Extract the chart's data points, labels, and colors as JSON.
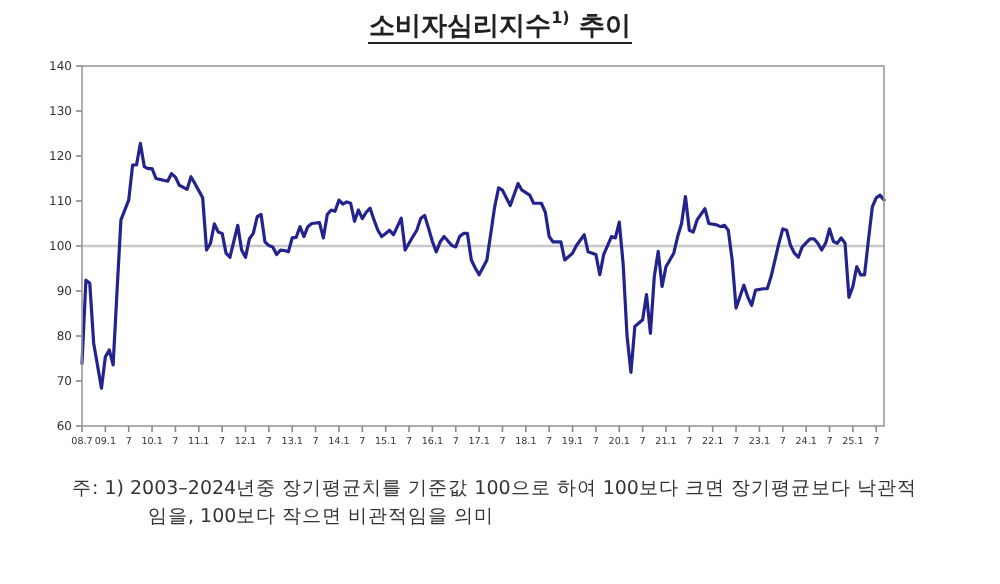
{
  "chart_data": {
    "type": "line",
    "title": "소비자심리지수$^{1)}$ 추이",
    "x": [
      "2008-07",
      "2008-08",
      "2008-09",
      "2008-10",
      "2008-12",
      "2009-01",
      "2009-02",
      "2009-03",
      "2009-04",
      "2009-05",
      "2009-07",
      "2009-08",
      "2009-09",
      "2009-10",
      "2009-11",
      "2009-12",
      "2010-01",
      "2010-02",
      "2010-05",
      "2010-06",
      "2010-07",
      "2010-08",
      "2010-10",
      "2010-11",
      "2010-12",
      "2011-02",
      "2011-03",
      "2011-04",
      "2011-05",
      "2011-06",
      "2011-07",
      "2011-08",
      "2011-09",
      "2011-11",
      "2011-12",
      "2012-01",
      "2012-02",
      "2012-03",
      "2012-04",
      "2012-05",
      "2012-06",
      "2012-07",
      "2012-08",
      "2012-09",
      "2012-10",
      "2012-11",
      "2012-12",
      "2013-01",
      "2013-02",
      "2013-03",
      "2013-04",
      "2013-05",
      "2013-06",
      "2013-08",
      "2013-09",
      "2013-10",
      "2013-11",
      "2013-12",
      "2014-01",
      "2014-02",
      "2014-03",
      "2014-04",
      "2014-05",
      "2014-06",
      "2014-07",
      "2014-08",
      "2014-09",
      "2014-10",
      "2014-11",
      "2014-12",
      "2015-01",
      "2015-02",
      "2015-03",
      "2015-04",
      "2015-05",
      "2015-06",
      "2015-07",
      "2015-08",
      "2015-09",
      "2015-10",
      "2015-11",
      "2015-12",
      "2016-01",
      "2016-02",
      "2016-03",
      "2016-04",
      "2016-06",
      "2016-07",
      "2016-08",
      "2016-09",
      "2016-10",
      "2016-11",
      "2016-12",
      "2017-01",
      "2017-03",
      "2017-04",
      "2017-05",
      "2017-06",
      "2017-07",
      "2017-09",
      "2017-11",
      "2017-12",
      "2018-02",
      "2018-03",
      "2018-05",
      "2018-06",
      "2018-07",
      "2018-08",
      "2018-10",
      "2018-11",
      "2019-01",
      "2019-02",
      "2019-04",
      "2019-05",
      "2019-07",
      "2019-08",
      "2019-09",
      "2019-11",
      "2019-12",
      "2020-01",
      "2020-02",
      "2020-03",
      "2020-04",
      "2020-05",
      "2020-07",
      "2020-08",
      "2020-09",
      "2020-10",
      "2020-11",
      "2020-12",
      "2021-01",
      "2021-03",
      "2021-04",
      "2021-05",
      "2021-06",
      "2021-07",
      "2021-08",
      "2021-09",
      "2021-11",
      "2021-12",
      "2022-02",
      "2022-03",
      "2022-04",
      "2022-05",
      "2022-06",
      "2022-07",
      "2022-09",
      "2022-10",
      "2022-11",
      "2022-12",
      "2023-02",
      "2023-03",
      "2023-04",
      "2023-05",
      "2023-06",
      "2023-07",
      "2023-08",
      "2023-09",
      "2023-10",
      "2023-11",
      "2023-12",
      "2024-02",
      "2024-03",
      "2024-04",
      "2024-05",
      "2024-06",
      "2024-07",
      "2024-08",
      "2024-09",
      "2024-10",
      "2024-11",
      "2024-12",
      "2025-01",
      "2025-02",
      "2025-03",
      "2025-04",
      "2025-05",
      "2025-06",
      "2025-07",
      "2025-08",
      "2025-09"
    ],
    "series": [
      {
        "color": "#23238e",
        "values": [
          73.9,
          92.4,
          91.7,
          78.4,
          68.4,
          75.4,
          76.9,
          73.6,
          90,
          105.8,
          110.2,
          118,
          118,
          122.8,
          117.6,
          117.2,
          117.2,
          115,
          114.4,
          116.1,
          115.3,
          113.5,
          112.6,
          115.4,
          113.9,
          110.7,
          99.1,
          100.6,
          104.9,
          103.1,
          102.8,
          98.4,
          97.5,
          104.6,
          99.1,
          97.5,
          101.6,
          102.8,
          106.5,
          107,
          100.9,
          100.1,
          99.8,
          98.1,
          99.1,
          99,
          98.7,
          101.8,
          101.9,
          104.3,
          102.1,
          104.3,
          105,
          105.2,
          101.8,
          107,
          108,
          107.7,
          110.2,
          109.3,
          109.8,
          109.5,
          105.5,
          108,
          106.1,
          107.5,
          108.4,
          105.8,
          103.5,
          102.1,
          102.8,
          103.5,
          102.5,
          104.3,
          106.2,
          99.1,
          100.6,
          102.1,
          103.5,
          106.1,
          106.8,
          104,
          101,
          98.7,
          100.9,
          102.1,
          100.1,
          99.8,
          102.1,
          102.8,
          102.8,
          96.9,
          95.1,
          93.6,
          96.9,
          102.8,
          108.7,
          112.9,
          112.4,
          109,
          113.9,
          112.4,
          111.3,
          109.5,
          109.5,
          107.5,
          102.1,
          100.9,
          100.9,
          96.9,
          98.4,
          100.1,
          102.5,
          98.7,
          98.1,
          93.6,
          98.1,
          102.1,
          101.8,
          105.3,
          96,
          80,
          71.9,
          82.1,
          83.6,
          89.2,
          80.6,
          93.2,
          98.8,
          91,
          95.4,
          98.4,
          102.1,
          105,
          111,
          103.5,
          103.1,
          105.8,
          108.3,
          105,
          104.7,
          104.3,
          104.6,
          103.5,
          96.9,
          86.2,
          91.3,
          88.7,
          86.8,
          90.2,
          90.5,
          90.5,
          93.2,
          96.9,
          100.6,
          103.8,
          103.5,
          100.1,
          98.4,
          97.5,
          99.8,
          101.6,
          101.6,
          100.6,
          99.1,
          100.6,
          103.8,
          101,
          100.6,
          101.8,
          100.6,
          88.6,
          91,
          95.4,
          93.6,
          93.6,
          101.3,
          108.7,
          110.7,
          111.3,
          110.2
        ]
      }
    ],
    "xlim": [
      "2008-07",
      "2025-09"
    ],
    "xticks": [
      {
        "value": "2008-07",
        "label": "08.7"
      },
      {
        "value": "2009-01",
        "label": "09.1"
      },
      {
        "value": "2009-07",
        "label": "7"
      },
      {
        "value": "2010-01",
        "label": "10.1"
      },
      {
        "value": "2010-07",
        "label": "7"
      },
      {
        "value": "2011-01",
        "label": "11.1"
      },
      {
        "value": "2011-07",
        "label": "7"
      },
      {
        "value": "2012-01",
        "label": "12.1"
      },
      {
        "value": "2012-07",
        "label": "7"
      },
      {
        "value": "2013-01",
        "label": "13.1"
      },
      {
        "value": "2013-07",
        "label": "7"
      },
      {
        "value": "2014-01",
        "label": "14.1"
      },
      {
        "value": "2014-07",
        "label": "7"
      },
      {
        "value": "2015-01",
        "label": "15.1"
      },
      {
        "value": "2015-07",
        "label": "7"
      },
      {
        "value": "2016-01",
        "label": "16.1"
      },
      {
        "value": "2016-07",
        "label": "7"
      },
      {
        "value": "2017-01",
        "label": "17.1"
      },
      {
        "value": "2017-07",
        "label": "7"
      },
      {
        "value": "2018-01",
        "label": "18.1"
      },
      {
        "value": "2018-07",
        "label": "7"
      },
      {
        "value": "2019-01",
        "label": "19.1"
      },
      {
        "value": "2019-07",
        "label": "7"
      },
      {
        "value": "2020-01",
        "label": "20.1"
      },
      {
        "value": "2020-07",
        "label": "7"
      },
      {
        "value": "2021-01",
        "label": "21.1"
      },
      {
        "value": "2021-07",
        "label": "7"
      },
      {
        "value": "2022-01",
        "label": "22.1"
      },
      {
        "value": "2022-07",
        "label": "7"
      },
      {
        "value": "2023-01",
        "label": "23.1"
      },
      {
        "value": "2023-07",
        "label": "7"
      },
      {
        "value": "2024-01",
        "label": "24.1"
      },
      {
        "value": "2024-07",
        "label": "7"
      },
      {
        "value": "2025-01",
        "label": "25.1"
      },
      {
        "value": "2025-07",
        "label": "7"
      }
    ],
    "ylim": [
      60,
      140
    ],
    "yticks": [
      60,
      70,
      80,
      90,
      100,
      110,
      120,
      130,
      140
    ],
    "ref_lines": [
      {
        "axis": "y",
        "value": 100,
        "color": "#c8c8c8"
      }
    ],
    "annotations": [
      "주: 1) 2003–2024년중 장기평균치를 기준값 100으로 하여 100보다 크면 장기평균보다 낙관적임을, 100보다 작으면 비관적임을 의미"
    ]
  }
}
